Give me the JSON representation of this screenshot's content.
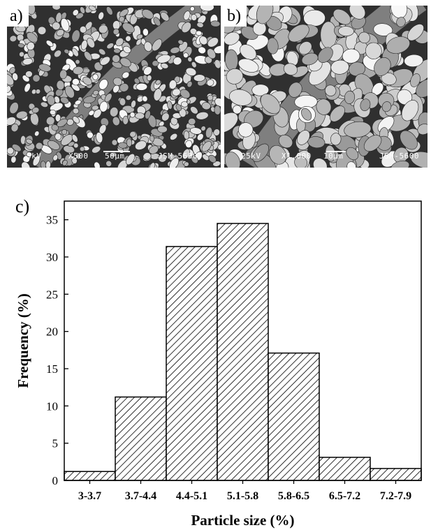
{
  "panels": {
    "a": {
      "tag": "a)",
      "kv": "5kV",
      "mag": "X500",
      "scale": "50µm",
      "instrument": "JSM-5600"
    },
    "b": {
      "tag": "b)",
      "kv": "25kV",
      "mag": "X1,000",
      "scale": "10µm",
      "instrument": "JSM-5600"
    },
    "c": {
      "tag": "c)"
    }
  },
  "chart_data": {
    "type": "bar",
    "title": "",
    "xlabel": "Particle size (%)",
    "ylabel": "Frequency (%)",
    "categories": [
      "3-3.7",
      "3.7-4.4",
      "4.4-5.1",
      "5.1-5.8",
      "5.8-6.5",
      "6.5-7.2",
      "7.2-7.9"
    ],
    "values": [
      1.2,
      11.2,
      31.4,
      34.5,
      17.1,
      3.1,
      1.6
    ],
    "ylim": [
      0,
      37.5
    ],
    "yticks": [
      0,
      5,
      10,
      15,
      20,
      25,
      30,
      35
    ],
    "grid": false,
    "fill": "diagonal-hatch",
    "colors": {
      "stroke": "#000000",
      "hatch": "#000000",
      "background": "#ffffff"
    }
  }
}
